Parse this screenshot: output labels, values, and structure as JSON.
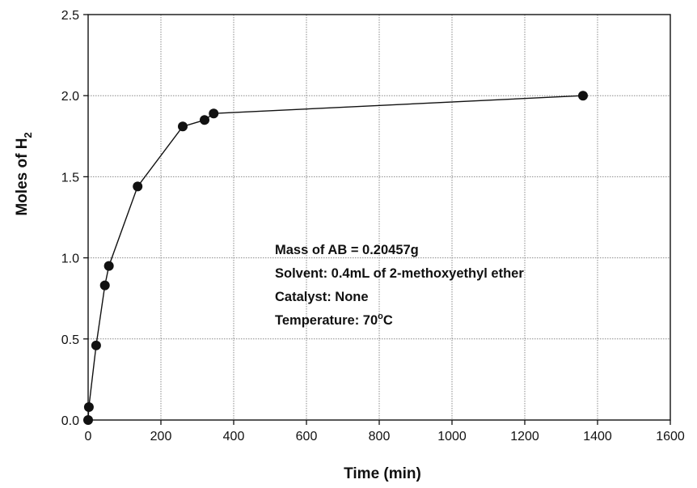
{
  "chart_data": {
    "type": "scatter",
    "xlabel": "Time (min)",
    "ylabel": "Moles of H",
    "ylabel_subscript": "2",
    "xlim": [
      0,
      1600
    ],
    "ylim": [
      0,
      2.5
    ],
    "x_ticks": [
      0,
      200,
      400,
      600,
      800,
      1000,
      1200,
      1400,
      1600
    ],
    "y_ticks": [
      0.0,
      0.5,
      1.0,
      1.5,
      2.0,
      2.5
    ],
    "x_tick_labels": [
      "0",
      "200",
      "400",
      "600",
      "800",
      "1000",
      "1200",
      "1400",
      "1600"
    ],
    "y_tick_labels": [
      "0.0",
      "0.5",
      "1.0",
      "1.5",
      "2.0",
      "2.5"
    ],
    "grid": true,
    "connect_points": true,
    "series": [
      {
        "x": [
          0,
          2,
          22,
          46,
          57,
          136,
          260,
          320,
          345,
          1360
        ],
        "y": [
          0.0,
          0.08,
          0.46,
          0.83,
          0.95,
          1.44,
          1.81,
          1.85,
          1.89,
          2.0
        ]
      }
    ],
    "annotations": {
      "line1": "Mass of AB = 0.20457g",
      "line2": "Solvent: 0.4mL of 2-methoxyethyl ether",
      "line3": "Catalyst:  None",
      "line4_prefix": "Temperature: 70",
      "line4_degree": "o",
      "line4_suffix": "C"
    }
  }
}
